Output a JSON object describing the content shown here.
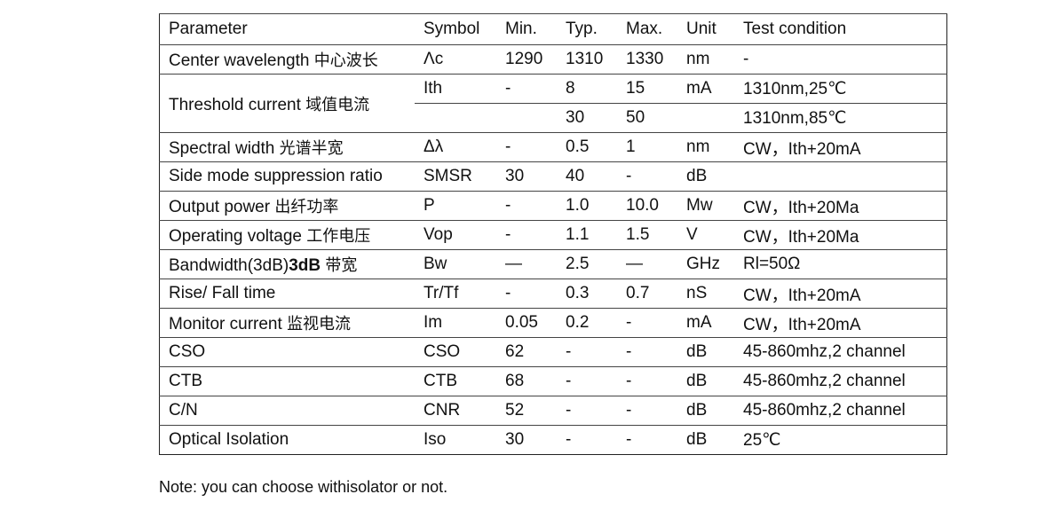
{
  "header": [
    "Parameter",
    "Symbol",
    "Min.",
    "Typ.",
    "Max.",
    "Unit",
    "Test condition"
  ],
  "rows": [
    {
      "param": "Center wavelength",
      "zh": "中心波长",
      "bold": "",
      "symbol": "Λc",
      "min": "1290",
      "typ": "1310",
      "max": "1330",
      "unit": "nm",
      "cond": "-"
    },
    {
      "param": "Threshold current",
      "zh": "域值电流",
      "bold": "",
      "symbol": "Ith",
      "min": "-",
      "typ": "8",
      "max": "15",
      "unit": "mA",
      "cond": "1310nm,25℃"
    },
    {
      "param": "",
      "zh": "",
      "bold": "",
      "symbol": "",
      "min": "",
      "typ": "30",
      "max": "50",
      "unit": "",
      "cond": "1310nm,85℃"
    },
    {
      "param": "Spectral width",
      "zh": "光谱半宽",
      "bold": "",
      "symbol": "Δλ",
      "min": "-",
      "typ": "0.5",
      "max": "1",
      "unit": "nm",
      "cond": "CW，Ith+20mA"
    },
    {
      "param": "Side mode suppression ratio",
      "zh": "",
      "bold": "",
      "symbol": "SMSR",
      "min": "30",
      "typ": "40",
      "max": "-",
      "unit": "dB",
      "cond": ""
    },
    {
      "param": "Output power",
      "zh": "出纤功率",
      "bold": "",
      "symbol": "P",
      "min": "-",
      "typ": "1.0",
      "max": "10.0",
      "unit": "Mw",
      "cond": "CW，Ith+20Ma"
    },
    {
      "param": "Operating voltage",
      "zh": "工作电压",
      "bold": "",
      "symbol": "Vop",
      "min": "-",
      "typ": "1.1",
      "max": "1.5",
      "unit": "V",
      "cond": "CW，Ith+20Ma"
    },
    {
      "param": "Bandwidth(3dB)",
      "zh": "带宽",
      "bold": "3dB",
      "symbol": "Bw",
      "min": "—",
      "typ": " 2.5",
      "max": "—",
      "unit": "GHz",
      "cond": "Rl=50Ω"
    },
    {
      "param": "Rise/ Fall time",
      "zh": "",
      "bold": "",
      "symbol": "Tr/Tf",
      "min": "-",
      "typ": "0.3",
      "max": "0.7",
      "unit": "nS",
      "cond": "CW，Ith+20mA"
    },
    {
      "param": "Monitor current",
      "zh": "监视电流",
      "bold": "",
      "symbol": "Im",
      "min": "0.05",
      "typ": "0.2",
      "max": "-",
      "unit": "mA",
      "cond": "CW，Ith+20mA"
    },
    {
      "param": "CSO",
      "zh": "",
      "bold": "",
      "symbol": "CSO",
      "min": "62",
      "typ": "-",
      "max": "-",
      "unit": "dB",
      "cond": "45-860mhz,2 channel"
    },
    {
      "param": "CTB",
      "zh": "",
      "bold": "",
      "symbol": "CTB",
      "min": "68",
      "typ": "-",
      "max": "-",
      "unit": "dB",
      "cond": "45-860mhz,2 channel"
    },
    {
      "param": "C/N",
      "zh": "",
      "bold": "",
      "symbol": "CNR",
      "min": "52",
      "typ": "-",
      "max": "-",
      "unit": "dB",
      "cond": "45-860mhz,2 channel"
    },
    {
      "param": "Optical Isolation",
      "zh": "",
      "bold": "",
      "symbol": "Iso",
      "min": "30",
      "typ": "-",
      "max": "-",
      "unit": "dB",
      "cond": "25℃"
    }
  ],
  "note": "Note: you can choose withisolator or not."
}
